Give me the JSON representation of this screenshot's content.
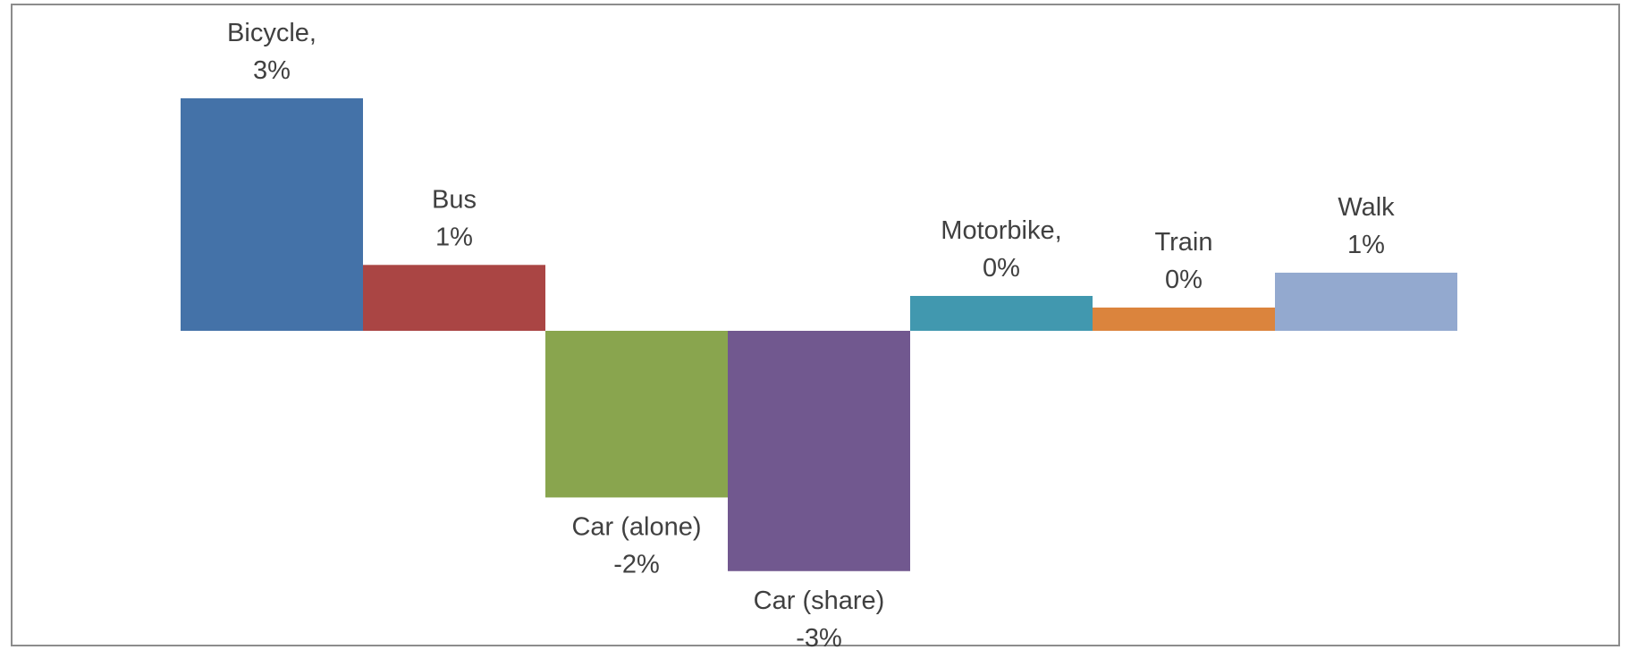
{
  "chart_data": {
    "type": "bar",
    "categories": [
      "Bicycle",
      "Bus",
      "Car (alone)",
      "Car (share)",
      "Motorbike",
      "Train",
      "Walk"
    ],
    "values": [
      3.0,
      0.85,
      -2.15,
      -3.1,
      0.45,
      0.3,
      0.75
    ],
    "data_labels": [
      [
        "Bicycle,",
        "3%"
      ],
      [
        "Bus",
        "1%"
      ],
      [
        "Car (alone)",
        "-2%"
      ],
      [
        "Car (share)",
        "-3%"
      ],
      [
        "Motorbike,",
        "0%"
      ],
      [
        "Train",
        "0%"
      ],
      [
        "Walk",
        "1%"
      ]
    ],
    "colors": [
      "#4472a8",
      "#aa4544",
      "#89a54e",
      "#71588f",
      "#4198af",
      "#db843d",
      "#93a9cf"
    ],
    "ylim": [
      -3.1,
      3.0
    ],
    "gridlines": false,
    "legend": "none",
    "axes_visible": false,
    "title": "",
    "xlabel": "",
    "ylabel": ""
  }
}
